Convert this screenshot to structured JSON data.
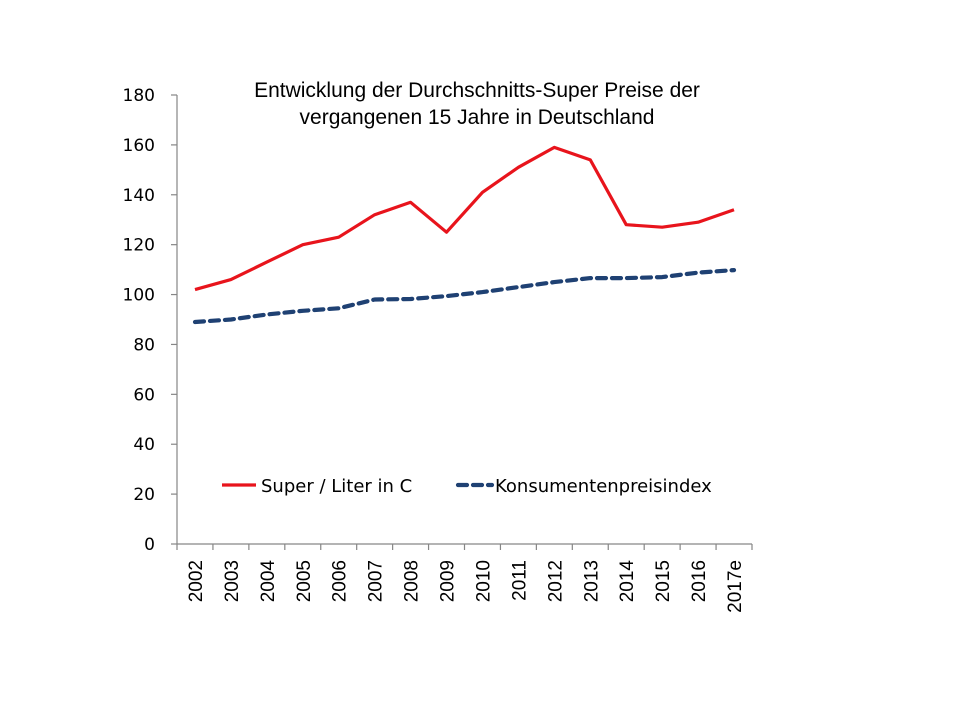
{
  "chart_data": {
    "type": "line",
    "title": "Entwicklung der Durchschnitts-Super Preise der vergangenen 15 Jahre in Deutschland",
    "title_lines": [
      "Entwicklung der Durchschnitts-Super Preise der",
      "vergangenen 15 Jahre in Deutschland"
    ],
    "xlabel": "",
    "ylabel": "",
    "categories": [
      "2002",
      "2003",
      "2004",
      "2005",
      "2006",
      "2007",
      "2008",
      "2009",
      "2010",
      "2011",
      "2012",
      "2013",
      "2014",
      "2015",
      "2016",
      "2017e"
    ],
    "ylim": [
      0,
      180
    ],
    "yticks": [
      0,
      20,
      40,
      60,
      80,
      100,
      120,
      140,
      160,
      180
    ],
    "grid": false,
    "legend_position": "bottom-inside",
    "series": [
      {
        "name": "Super / Liter in C",
        "style": "solid",
        "color": "#E8141C",
        "values": [
          102,
          106,
          113,
          120,
          123,
          132,
          137,
          125,
          141,
          151,
          159,
          154,
          128,
          127,
          129,
          134
        ]
      },
      {
        "name": "Konsumentenpreisindex",
        "style": "dashed",
        "color": "#1F4173",
        "values": [
          89,
          90,
          92,
          93.5,
          94.5,
          98,
          98.2,
          99.4,
          101,
          103,
          105,
          106.6,
          106.6,
          107,
          108.8,
          109.8
        ]
      }
    ]
  }
}
